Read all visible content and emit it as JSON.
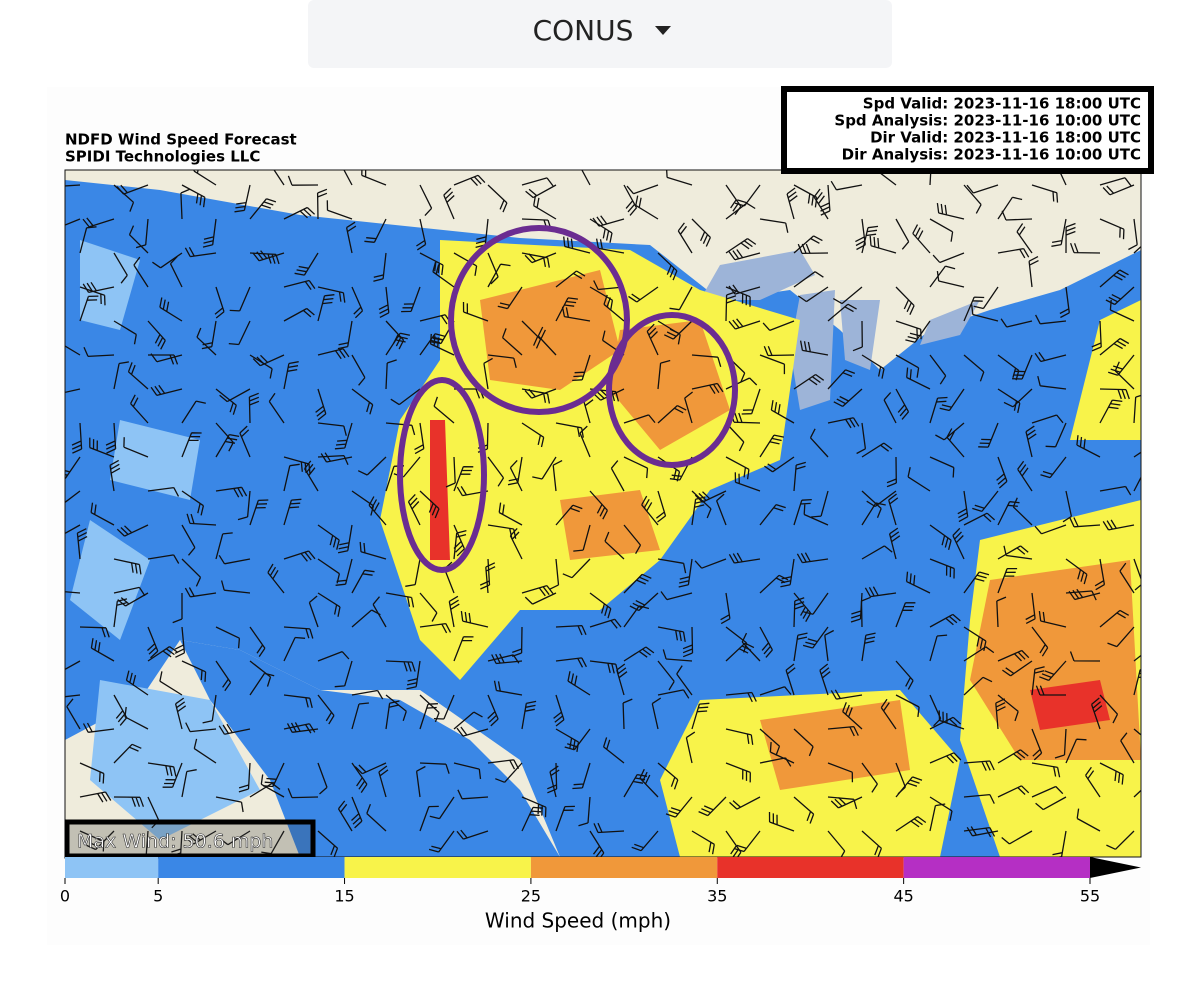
{
  "dropdown": {
    "label": "CONUS"
  },
  "map": {
    "title_lines": [
      "NDFD Wind Speed Forecast",
      "SPIDI Technologies LLC"
    ],
    "times": [
      "Spd Valid: 2023-11-16 18:00 UTC",
      "Spd Analysis: 2023-11-16 10:00 UTC",
      "Dir Valid: 2023-11-16 18:00 UTC",
      "Dir Analysis: 2023-11-16 10:00 UTC"
    ],
    "max_wind": "Max Wind: 50.6 mph"
  },
  "colorbar": {
    "bins": [
      0,
      5,
      15,
      25,
      35,
      45,
      55
    ],
    "colors": [
      "#8ec4f5",
      "#3a87e6",
      "#f8f34a",
      "#f0983a",
      "#e8322a",
      "#b52fc4"
    ],
    "label": "Wind Speed (mph)"
  }
}
